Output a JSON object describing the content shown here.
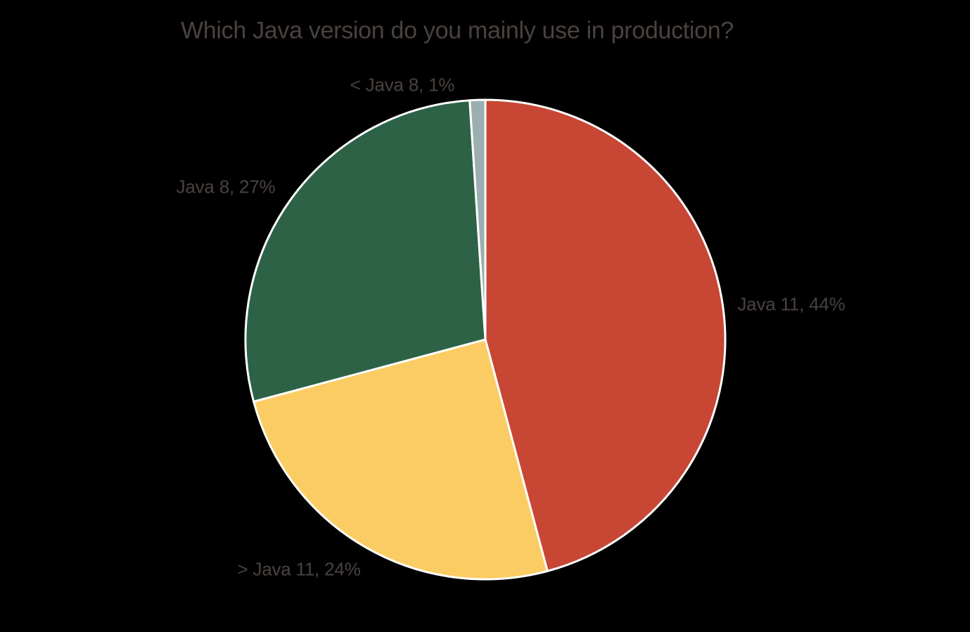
{
  "chart_data": {
    "type": "pie",
    "title": "Which Java version do you mainly use in production?",
    "unit": "%",
    "slices": [
      {
        "name": "Java 11",
        "value": 44,
        "label": "Java 11, 44%",
        "color": "#C74634"
      },
      {
        "name": "> Java 11",
        "value": 24,
        "label": "> Java 11, 24%",
        "color": "#FACC63"
      },
      {
        "name": "Java 8",
        "value": 27,
        "label": "Java 8, 27%",
        "color": "#2D6246"
      },
      {
        "name": "< Java 8",
        "value": 1,
        "label": "< Java 8, 1%",
        "color": "#9BAFAE"
      }
    ],
    "start_angle_deg": 0,
    "direction": "clockwise",
    "labels_position": "outside",
    "legend": "none",
    "slice_border_color": "#FFFFFF",
    "background_color": "#000000",
    "text_color": "#49423F"
  }
}
